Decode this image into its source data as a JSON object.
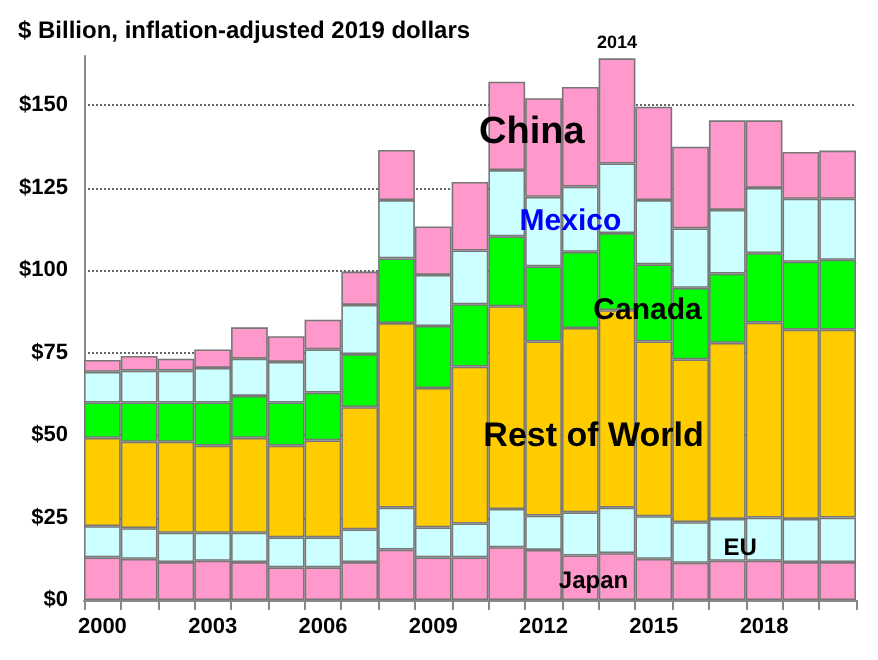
{
  "chart_data": {
    "type": "bar",
    "stacked": true,
    "title": "$ Billion, inflation-adjusted 2019 dollars",
    "categories": [
      "2000",
      null,
      null,
      "2003",
      null,
      null,
      "2006",
      null,
      null,
      "2009",
      null,
      null,
      "2012",
      null,
      null,
      "2015",
      null,
      null,
      "2018",
      null,
      null
    ],
    "series": [
      {
        "name": "Japan",
        "color": "#ff99cc",
        "values": [
          12.9,
          12.5,
          11.5,
          11.9,
          11.5,
          9.9,
          9.9,
          11.5,
          15.3,
          12.9,
          12.9,
          16.0,
          15.2,
          13.5,
          14.2,
          12.5,
          11.3,
          11.9,
          11.9,
          11.5,
          11.5
        ]
      },
      {
        "name": "EU",
        "color": "#ccffff",
        "values": [
          9.5,
          9.3,
          8.9,
          8.5,
          8.9,
          9.1,
          9.1,
          9.9,
          12.7,
          9.1,
          10.3,
          11.6,
          10.4,
          13.1,
          13.8,
          12.9,
          12.3,
          12.7,
          13.1,
          13.1,
          13.5
        ]
      },
      {
        "name": "Rest of World",
        "color": "#ffcc00",
        "values": [
          26.8,
          26.2,
          27.6,
          26.4,
          28.8,
          27.8,
          29.4,
          37.1,
          56.0,
          42.3,
          47.6,
          61.5,
          52.8,
          55.9,
          59.9,
          53.0,
          49.4,
          53.4,
          59.1,
          57.4,
          57.0
        ]
      },
      {
        "name": "Canada",
        "color": "#00ff00",
        "values": [
          10.7,
          11.9,
          11.9,
          13.1,
          12.7,
          13.1,
          14.5,
          16.1,
          19.6,
          18.8,
          18.9,
          21.2,
          22.8,
          23.1,
          23.4,
          23.4,
          21.7,
          21.0,
          21.1,
          20.6,
          21.2
        ]
      },
      {
        "name": "Mexico",
        "color": "#ccffff",
        "values": [
          9.3,
          9.7,
          9.7,
          10.5,
          11.3,
          12.3,
          13.1,
          14.9,
          17.7,
          15.5,
          16.3,
          20.1,
          21.1,
          19.8,
          21.1,
          19.5,
          18.0,
          19.3,
          19.8,
          19.1,
          18.5
        ]
      },
      {
        "name": "China",
        "color": "#ff99cc",
        "values": [
          3.6,
          4.4,
          3.6,
          5.6,
          9.5,
          7.8,
          9.0,
          10.1,
          15.2,
          14.7,
          20.8,
          26.8,
          29.9,
          30.2,
          31.9,
          28.3,
          24.8,
          27.2,
          20.5,
          14.2,
          14.6
        ]
      }
    ],
    "ylim": [
      0,
      165
    ],
    "yticks": [
      {
        "value": 0,
        "label": "$0"
      },
      {
        "value": 25,
        "label": "$25"
      },
      {
        "value": 50,
        "label": "$50"
      },
      {
        "value": 75,
        "label": "$75"
      },
      {
        "value": 100,
        "label": "$100"
      },
      {
        "value": 125,
        "label": "$125"
      },
      {
        "value": 150,
        "label": "$150"
      }
    ],
    "grid": "y",
    "legend": false,
    "annotations": [
      "2014"
    ]
  }
}
